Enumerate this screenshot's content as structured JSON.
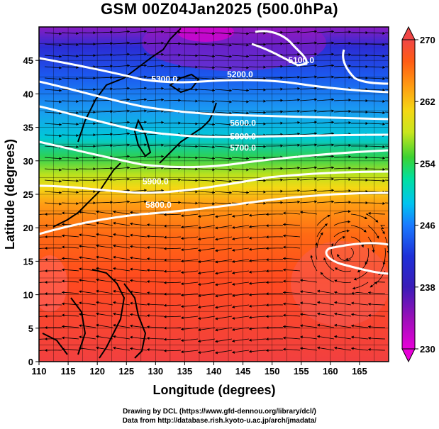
{
  "title": "GSM 00Z04Jan2025 (500.0hPa)",
  "xaxis": {
    "label": "Longitude (degrees)",
    "ticks": [
      "110",
      "115",
      "120",
      "125",
      "130",
      "135",
      "140",
      "145",
      "150",
      "155",
      "160",
      "165"
    ],
    "range": [
      110,
      170
    ]
  },
  "yaxis": {
    "label": "Latitude  (degrees)",
    "ticks": [
      "0",
      "5",
      "10",
      "15",
      "20",
      "25",
      "30",
      "35",
      "40",
      "45"
    ],
    "range": [
      0,
      50
    ]
  },
  "colorbar": {
    "ticks": [
      "230",
      "238",
      "246",
      "254",
      "262",
      "270"
    ],
    "range": [
      230,
      270
    ],
    "colors": [
      "#e800d8",
      "#6c1aa8",
      "#1e2fd0",
      "#1d73ff",
      "#00c8f0",
      "#00e0a0",
      "#32d232",
      "#b4e61e",
      "#f0dc14",
      "#ff9c12",
      "#ff5a14",
      "#f04646"
    ]
  },
  "contour_labels": [
    {
      "text": "5100.0",
      "lon": 155.0,
      "lat": 44.6
    },
    {
      "text": "5300.0",
      "lon": 131.5,
      "lat": 41.8
    },
    {
      "text": "5200.0",
      "lon": 144.5,
      "lat": 42.5
    },
    {
      "text": "5600.0",
      "lon": 145.0,
      "lat": 35.2
    },
    {
      "text": "5800.0",
      "lon": 145.0,
      "lat": 33.2
    },
    {
      "text": "5700.0",
      "lon": 145.0,
      "lat": 31.5
    },
    {
      "text": "5900.0",
      "lon": 130.0,
      "lat": 26.5
    },
    {
      "text": "5800.0",
      "lon": 130.5,
      "lat": 23.0
    }
  ],
  "footer": {
    "line1": "Drawing by DCL (https://www.gfd-dennou.org/library/dcl/)",
    "line2": "Data from http://database.rish.kyoto-u.ac.jp/arch/jmadata/"
  }
}
